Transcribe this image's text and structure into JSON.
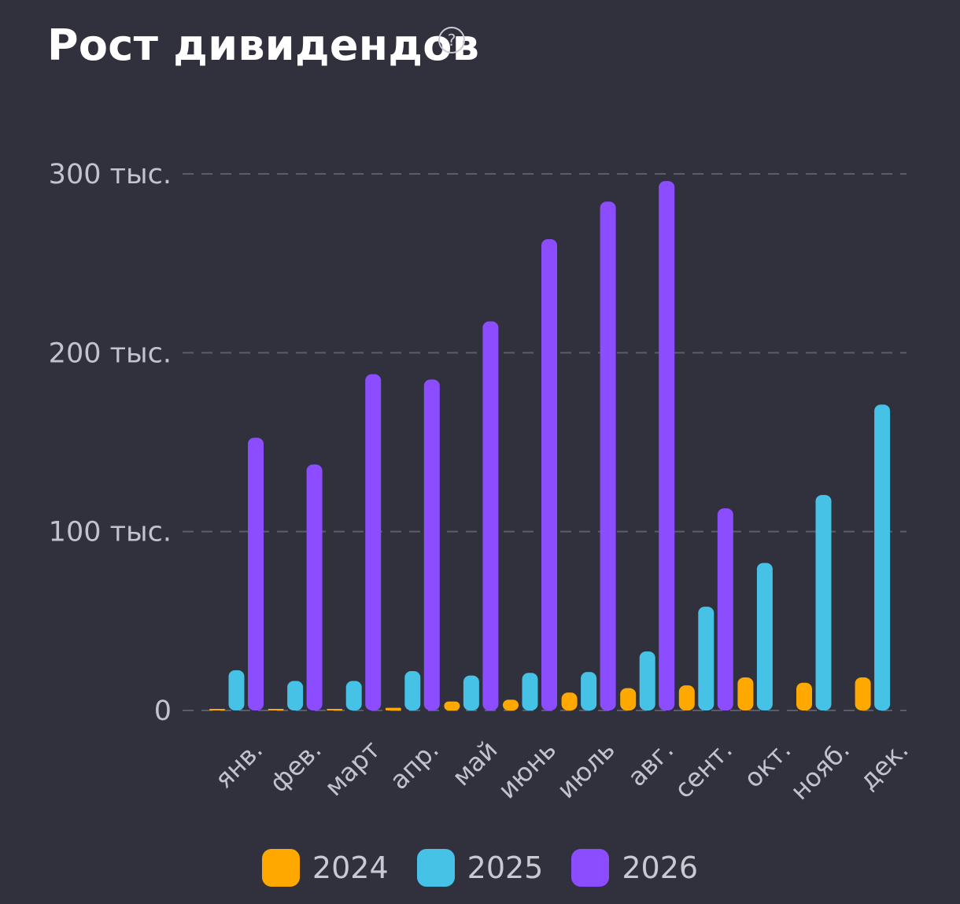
{
  "header": {
    "title": "Рост дивидендов",
    "help_icon": "question-circle-icon",
    "help_glyph": "?"
  },
  "chart_data": {
    "type": "bar",
    "categories": [
      "янв.",
      "фев.",
      "март",
      "апр.",
      "май",
      "июнь",
      "июль",
      "авг.",
      "сент.",
      "окт.",
      "нояб.",
      "дек."
    ],
    "series": [
      {
        "name": "2024",
        "color": "#ffa900",
        "values": [
          0.5,
          0.3,
          0.5,
          1.5,
          5,
          6,
          10,
          12.5,
          14,
          18.5,
          15.5,
          18.5
        ]
      },
      {
        "name": "2025",
        "color": "#45c2e6",
        "values": [
          22.5,
          16.5,
          16.5,
          22,
          19.5,
          21,
          21.5,
          33,
          58,
          82.5,
          120.5,
          171
        ]
      },
      {
        "name": "2026",
        "color": "#8b4dff",
        "values": [
          152.5,
          137.5,
          188,
          185,
          217.5,
          263.5,
          284.5,
          296,
          113,
          null,
          null,
          null
        ]
      }
    ],
    "yticks": [
      {
        "value": 0,
        "label": "0"
      },
      {
        "value": 100,
        "label": "100 тыс."
      },
      {
        "value": 200,
        "label": "200 тыс."
      },
      {
        "value": 300,
        "label": "300 тыс."
      }
    ],
    "ylim": [
      0,
      300
    ],
    "grid": true,
    "legend_position": "bottom-center"
  }
}
